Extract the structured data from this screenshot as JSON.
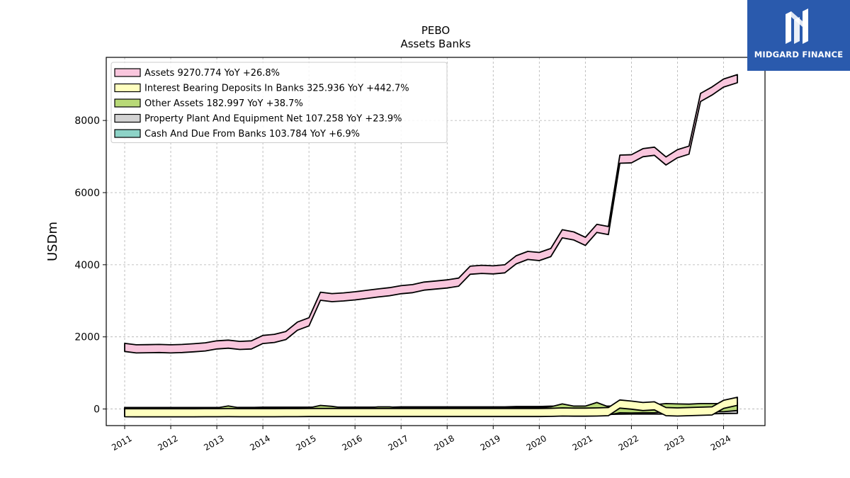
{
  "brand": {
    "name": "MIDGARD FINANCE",
    "logo_icon": "midgard-m-icon",
    "color": "#2a5aad"
  },
  "chart_data": {
    "type": "area",
    "title": "PEBO",
    "subtitle": "Assets Banks",
    "xlabel": "",
    "ylabel": "USDm",
    "xlim": [
      2010.6,
      2024.9
    ],
    "ylim": [
      -460,
      9750
    ],
    "yticks": [
      0,
      2000,
      4000,
      6000,
      8000
    ],
    "xticks": [
      2011,
      2012,
      2013,
      2014,
      2015,
      2016,
      2017,
      2018,
      2019,
      2020,
      2021,
      2022,
      2023,
      2024
    ],
    "grid": true,
    "legend_position": "top-left",
    "x": [
      2011.0,
      2011.25,
      2011.5,
      2011.75,
      2012.0,
      2012.25,
      2012.5,
      2012.75,
      2013.0,
      2013.25,
      2013.5,
      2013.75,
      2014.0,
      2014.25,
      2014.5,
      2014.75,
      2015.0,
      2015.25,
      2015.5,
      2015.75,
      2016.0,
      2016.25,
      2016.5,
      2016.75,
      2017.0,
      2017.25,
      2017.5,
      2017.75,
      2018.0,
      2018.25,
      2018.5,
      2018.75,
      2019.0,
      2019.25,
      2019.5,
      2019.75,
      2020.0,
      2020.25,
      2020.5,
      2020.75,
      2021.0,
      2021.25,
      2021.5,
      2021.75,
      2022.0,
      2022.25,
      2022.5,
      2022.75,
      2023.0,
      2023.25,
      2023.5,
      2023.75,
      2024.0,
      2024.3
    ],
    "series": [
      {
        "name": "Assets",
        "legend": "Assets  9270.774 YoY +26.8%",
        "color": "#f9c6dd",
        "values": [
          1820,
          1780,
          1785,
          1790,
          1780,
          1790,
          1810,
          1835,
          1890,
          1910,
          1875,
          1890,
          2040,
          2070,
          2150,
          2410,
          2530,
          3240,
          3200,
          3220,
          3250,
          3290,
          3330,
          3365,
          3420,
          3450,
          3520,
          3550,
          3580,
          3630,
          3960,
          3985,
          3970,
          4000,
          4250,
          4370,
          4340,
          4450,
          4970,
          4910,
          4760,
          5120,
          5060,
          7040,
          7050,
          7220,
          7260,
          6990,
          7190,
          7290,
          8750,
          8930,
          9150,
          9271
        ]
      },
      {
        "name": "Interest Bearing Deposits In Banks",
        "legend": "Interest Bearing Deposits In Banks  325.936 YoY +442.7%",
        "color": "#ffffbf",
        "values": [
          10,
          8,
          8,
          8,
          8,
          8,
          8,
          10,
          10,
          12,
          10,
          10,
          10,
          10,
          12,
          12,
          15,
          15,
          15,
          15,
          15,
          15,
          15,
          15,
          15,
          15,
          15,
          15,
          15,
          15,
          15,
          15,
          15,
          15,
          15,
          15,
          15,
          20,
          30,
          25,
          25,
          30,
          40,
          250,
          220,
          180,
          200,
          40,
          30,
          40,
          50,
          60,
          240,
          326
        ]
      },
      {
        "name": "Other Assets",
        "legend": "Other Assets  182.997 YoY +38.7%",
        "color": "#b8d977",
        "values": [
          30,
          30,
          30,
          30,
          30,
          30,
          30,
          30,
          30,
          85,
          30,
          30,
          30,
          30,
          30,
          30,
          30,
          100,
          75,
          30,
          30,
          30,
          60,
          60,
          30,
          30,
          30,
          30,
          30,
          30,
          30,
          30,
          30,
          30,
          30,
          30,
          30,
          60,
          140,
          80,
          80,
          180,
          60,
          120,
          115,
          120,
          120,
          150,
          140,
          135,
          150,
          150,
          150,
          183
        ]
      },
      {
        "name": "Property Plant And Equipment Net",
        "legend": "Property Plant And Equipment Net  107.258 YoY +23.9%",
        "color": "#d3d3d3",
        "values": [
          40,
          40,
          40,
          40,
          40,
          40,
          40,
          40,
          40,
          40,
          45,
          45,
          45,
          45,
          45,
          45,
          45,
          50,
          50,
          50,
          50,
          50,
          50,
          50,
          50,
          50,
          50,
          50,
          50,
          50,
          50,
          50,
          50,
          50,
          50,
          50,
          55,
          55,
          55,
          60,
          60,
          70,
          75,
          80,
          85,
          85,
          85,
          85,
          85,
          85,
          85,
          90,
          100,
          107
        ]
      },
      {
        "name": "Cash And Due From Banks",
        "legend": "Cash And Due From Banks  103.784 YoY +6.9%",
        "color": "#8dd3c7",
        "values": [
          40,
          40,
          40,
          40,
          40,
          40,
          40,
          40,
          40,
          40,
          40,
          40,
          50,
          50,
          50,
          50,
          50,
          50,
          50,
          50,
          50,
          50,
          50,
          50,
          60,
          60,
          60,
          60,
          60,
          60,
          60,
          60,
          60,
          60,
          70,
          70,
          70,
          80,
          80,
          80,
          80,
          80,
          80,
          90,
          90,
          95,
          95,
          95,
          95,
          97,
          97,
          97,
          100,
          104
        ]
      }
    ]
  }
}
